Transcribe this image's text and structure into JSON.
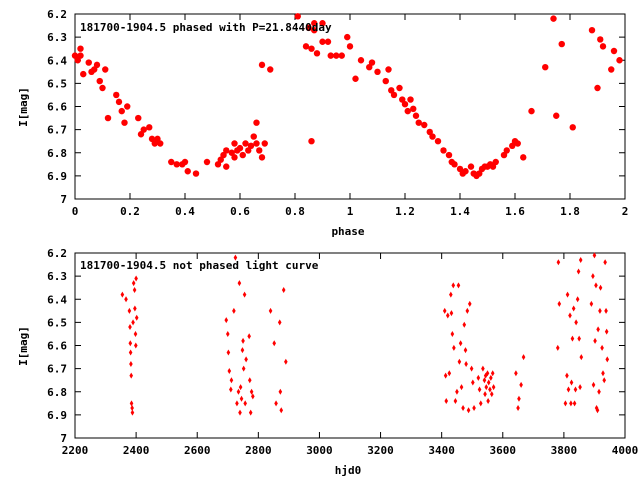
{
  "chart_data": [
    {
      "type": "scatter",
      "title": "181700-1904.5 phased with P=21.8440day",
      "xlabel": "phase",
      "ylabel": "I[mag]",
      "xlim": [
        0,
        2
      ],
      "ylim": [
        7,
        6.2
      ],
      "y_inverted": true,
      "grid": false,
      "x_ticks": [
        "0",
        "0.2",
        "0.4",
        "0.6",
        "0.8",
        "1",
        "1.2",
        "1.4",
        "1.6",
        "1.8",
        "2"
      ],
      "y_ticks": [
        "6.2",
        "6.3",
        "6.4",
        "6.5",
        "6.6",
        "6.7",
        "6.8",
        "6.9",
        "7"
      ],
      "marker": "filled-circle",
      "color": "#ff0000",
      "series": [
        {
          "points": [
            [
              0.0,
              6.38
            ],
            [
              0.01,
              6.4
            ],
            [
              0.02,
              6.35
            ],
            [
              0.02,
              6.38
            ],
            [
              0.03,
              6.46
            ],
            [
              0.05,
              6.41
            ],
            [
              0.06,
              6.45
            ],
            [
              0.07,
              6.44
            ],
            [
              0.08,
              6.42
            ],
            [
              0.09,
              6.49
            ],
            [
              0.1,
              6.52
            ],
            [
              0.11,
              6.44
            ],
            [
              0.12,
              6.65
            ],
            [
              0.15,
              6.55
            ],
            [
              0.16,
              6.58
            ],
            [
              0.17,
              6.62
            ],
            [
              0.18,
              6.67
            ],
            [
              0.19,
              6.6
            ],
            [
              0.23,
              6.65
            ],
            [
              0.24,
              6.72
            ],
            [
              0.25,
              6.7
            ],
            [
              0.27,
              6.69
            ],
            [
              0.28,
              6.74
            ],
            [
              0.29,
              6.76
            ],
            [
              0.3,
              6.74
            ],
            [
              0.31,
              6.76
            ],
            [
              0.35,
              6.84
            ],
            [
              0.37,
              6.85
            ],
            [
              0.39,
              6.85
            ],
            [
              0.4,
              6.84
            ],
            [
              0.41,
              6.88
            ],
            [
              0.44,
              6.89
            ],
            [
              0.48,
              6.84
            ],
            [
              0.52,
              6.85
            ],
            [
              0.53,
              6.83
            ],
            [
              0.54,
              6.81
            ],
            [
              0.55,
              6.79
            ],
            [
              0.55,
              6.86
            ],
            [
              0.57,
              6.8
            ],
            [
              0.58,
              6.82
            ],
            [
              0.58,
              6.76
            ],
            [
              0.59,
              6.79
            ],
            [
              0.6,
              6.78
            ],
            [
              0.61,
              6.81
            ],
            [
              0.62,
              6.76
            ],
            [
              0.63,
              6.79
            ],
            [
              0.64,
              6.77
            ],
            [
              0.65,
              6.73
            ],
            [
              0.66,
              6.76
            ],
            [
              0.67,
              6.79
            ],
            [
              0.68,
              6.82
            ],
            [
              0.69,
              6.76
            ],
            [
              0.66,
              6.67
            ],
            [
              0.68,
              6.42
            ],
            [
              0.71,
              6.44
            ],
            [
              0.81,
              6.21
            ],
            [
              0.84,
              6.34
            ],
            [
              0.85,
              6.26
            ],
            [
              0.86,
              6.75
            ],
            [
              0.86,
              6.35
            ],
            [
              0.87,
              6.24
            ],
            [
              0.87,
              6.27
            ],
            [
              0.88,
              6.37
            ],
            [
              0.9,
              6.24
            ],
            [
              0.9,
              6.32
            ],
            [
              0.92,
              6.32
            ],
            [
              0.93,
              6.38
            ],
            [
              0.95,
              6.38
            ],
            [
              0.97,
              6.38
            ],
            [
              0.99,
              6.3
            ],
            [
              1.0,
              6.34
            ],
            [
              1.02,
              6.48
            ],
            [
              1.04,
              6.4
            ],
            [
              1.07,
              6.43
            ],
            [
              1.08,
              6.41
            ],
            [
              1.1,
              6.45
            ],
            [
              1.13,
              6.49
            ],
            [
              1.14,
              6.44
            ],
            [
              1.15,
              6.53
            ],
            [
              1.16,
              6.55
            ],
            [
              1.18,
              6.52
            ],
            [
              1.19,
              6.57
            ],
            [
              1.2,
              6.59
            ],
            [
              1.21,
              6.62
            ],
            [
              1.22,
              6.57
            ],
            [
              1.23,
              6.61
            ],
            [
              1.24,
              6.64
            ],
            [
              1.25,
              6.67
            ],
            [
              1.27,
              6.68
            ],
            [
              1.29,
              6.71
            ],
            [
              1.3,
              6.73
            ],
            [
              1.32,
              6.75
            ],
            [
              1.34,
              6.79
            ],
            [
              1.36,
              6.81
            ],
            [
              1.37,
              6.84
            ],
            [
              1.38,
              6.85
            ],
            [
              1.4,
              6.87
            ],
            [
              1.41,
              6.89
            ],
            [
              1.42,
              6.88
            ],
            [
              1.44,
              6.86
            ],
            [
              1.45,
              6.89
            ],
            [
              1.46,
              6.9
            ],
            [
              1.47,
              6.89
            ],
            [
              1.48,
              6.87
            ],
            [
              1.49,
              6.86
            ],
            [
              1.5,
              6.86
            ],
            [
              1.51,
              6.85
            ],
            [
              1.52,
              6.86
            ],
            [
              1.53,
              6.84
            ],
            [
              1.56,
              6.81
            ],
            [
              1.57,
              6.79
            ],
            [
              1.59,
              6.77
            ],
            [
              1.6,
              6.75
            ],
            [
              1.61,
              6.76
            ],
            [
              1.63,
              6.82
            ],
            [
              1.66,
              6.62
            ],
            [
              1.71,
              6.43
            ],
            [
              1.74,
              6.22
            ],
            [
              1.75,
              6.64
            ],
            [
              1.77,
              6.33
            ],
            [
              1.81,
              6.69
            ],
            [
              1.88,
              6.27
            ],
            [
              1.9,
              6.52
            ],
            [
              1.91,
              6.31
            ],
            [
              1.92,
              6.34
            ],
            [
              1.95,
              6.44
            ],
            [
              1.96,
              6.36
            ],
            [
              1.98,
              6.4
            ]
          ]
        }
      ]
    },
    {
      "type": "scatter",
      "title": "181700-1904.5 not phased light curve",
      "xlabel": "hjd0",
      "ylabel": "I[mag]",
      "xlim": [
        2200,
        4000
      ],
      "ylim": [
        7,
        6.2
      ],
      "y_inverted": true,
      "grid": false,
      "x_ticks": [
        "2200",
        "2400",
        "2600",
        "2800",
        "3000",
        "3200",
        "3400",
        "3600",
        "3800",
        "4000"
      ],
      "y_ticks": [
        "6.2",
        "6.3",
        "6.4",
        "6.5",
        "6.6",
        "6.7",
        "6.8",
        "6.9",
        "7"
      ],
      "marker": "small-diamond",
      "color": "#ff0000",
      "series": [
        {
          "points": [
            [
              2355,
              6.38
            ],
            [
              2367,
              6.4
            ],
            [
              2378,
              6.45
            ],
            [
              2380,
              6.52
            ],
            [
              2381,
              6.59
            ],
            [
              2382,
              6.63
            ],
            [
              2383,
              6.68
            ],
            [
              2384,
              6.73
            ],
            [
              2385,
              6.85
            ],
            [
              2387,
              6.87
            ],
            [
              2388,
              6.89
            ],
            [
              2390,
              6.5
            ],
            [
              2392,
              6.33
            ],
            [
              2395,
              6.36
            ],
            [
              2396,
              6.44
            ],
            [
              2398,
              6.55
            ],
            [
              2399,
              6.6
            ],
            [
              2400,
              6.31
            ],
            [
              2402,
              6.48
            ],
            [
              2695,
              6.49
            ],
            [
              2700,
              6.55
            ],
            [
              2702,
              6.63
            ],
            [
              2705,
              6.71
            ],
            [
              2710,
              6.79
            ],
            [
              2712,
              6.75
            ],
            [
              2720,
              6.45
            ],
            [
              2725,
              6.22
            ],
            [
              2730,
              6.85
            ],
            [
              2735,
              6.8
            ],
            [
              2738,
              6.33
            ],
            [
              2740,
              6.89
            ],
            [
              2742,
              6.78
            ],
            [
              2745,
              6.83
            ],
            [
              2748,
              6.62
            ],
            [
              2750,
              6.58
            ],
            [
              2752,
              6.7
            ],
            [
              2755,
              6.38
            ],
            [
              2757,
              6.85
            ],
            [
              2760,
              6.66
            ],
            [
              2770,
              6.56
            ],
            [
              2772,
              6.75
            ],
            [
              2775,
              6.89
            ],
            [
              2778,
              6.8
            ],
            [
              2782,
              6.82
            ],
            [
              2840,
              6.45
            ],
            [
              2852,
              6.59
            ],
            [
              2858,
              6.85
            ],
            [
              2870,
              6.5
            ],
            [
              2872,
              6.8
            ],
            [
              2875,
              6.88
            ],
            [
              2883,
              6.36
            ],
            [
              2890,
              6.67
            ],
            [
              3410,
              6.45
            ],
            [
              3413,
              6.73
            ],
            [
              3415,
              6.84
            ],
            [
              3420,
              6.47
            ],
            [
              3425,
              6.72
            ],
            [
              3430,
              6.38
            ],
            [
              3432,
              6.46
            ],
            [
              3435,
              6.55
            ],
            [
              3438,
              6.34
            ],
            [
              3440,
              6.61
            ],
            [
              3445,
              6.84
            ],
            [
              3450,
              6.8
            ],
            [
              3455,
              6.34
            ],
            [
              3458,
              6.67
            ],
            [
              3462,
              6.59
            ],
            [
              3465,
              6.78
            ],
            [
              3470,
              6.87
            ],
            [
              3474,
              6.51
            ],
            [
              3478,
              6.62
            ],
            [
              3480,
              6.68
            ],
            [
              3484,
              6.45
            ],
            [
              3488,
              6.88
            ],
            [
              3492,
              6.42
            ],
            [
              3498,
              6.7
            ],
            [
              3502,
              6.76
            ],
            [
              3506,
              6.87
            ],
            [
              3520,
              6.74
            ],
            [
              3524,
              6.79
            ],
            [
              3528,
              6.85
            ],
            [
              3535,
              6.7
            ],
            [
              3540,
              6.75
            ],
            [
              3542,
              6.81
            ],
            [
              3544,
              6.73
            ],
            [
              3546,
              6.78
            ],
            [
              3550,
              6.72
            ],
            [
              3552,
              6.84
            ],
            [
              3554,
              6.76
            ],
            [
              3558,
              6.79
            ],
            [
              3561,
              6.74
            ],
            [
              3564,
              6.81
            ],
            [
              3567,
              6.72
            ],
            [
              3570,
              6.78
            ],
            [
              3643,
              6.72
            ],
            [
              3650,
              6.87
            ],
            [
              3653,
              6.83
            ],
            [
              3660,
              6.77
            ],
            [
              3668,
              6.65
            ],
            [
              3780,
              6.61
            ],
            [
              3782,
              6.24
            ],
            [
              3785,
              6.42
            ],
            [
              3805,
              6.85
            ],
            [
              3810,
              6.73
            ],
            [
              3812,
              6.38
            ],
            [
              3815,
              6.79
            ],
            [
              3820,
              6.47
            ],
            [
              3823,
              6.85
            ],
            [
              3825,
              6.76
            ],
            [
              3828,
              6.57
            ],
            [
              3832,
              6.44
            ],
            [
              3835,
              6.85
            ],
            [
              3838,
              6.79
            ],
            [
              3840,
              6.5
            ],
            [
              3845,
              6.4
            ],
            [
              3848,
              6.28
            ],
            [
              3850,
              6.57
            ],
            [
              3853,
              6.78
            ],
            [
              3855,
              6.23
            ],
            [
              3857,
              6.65
            ],
            [
              3890,
              6.42
            ],
            [
              3895,
              6.3
            ],
            [
              3897,
              6.77
            ],
            [
              3900,
              6.21
            ],
            [
              3902,
              6.58
            ],
            [
              3905,
              6.34
            ],
            [
              3907,
              6.87
            ],
            [
              3910,
              6.88
            ],
            [
              3912,
              6.53
            ],
            [
              3915,
              6.8
            ],
            [
              3918,
              6.45
            ],
            [
              3920,
              6.35
            ],
            [
              3925,
              6.61
            ],
            [
              3928,
              6.72
            ],
            [
              3932,
              6.75
            ],
            [
              3935,
              6.24
            ],
            [
              3938,
              6.45
            ],
            [
              3940,
              6.54
            ],
            [
              3942,
              6.66
            ]
          ]
        }
      ]
    }
  ]
}
